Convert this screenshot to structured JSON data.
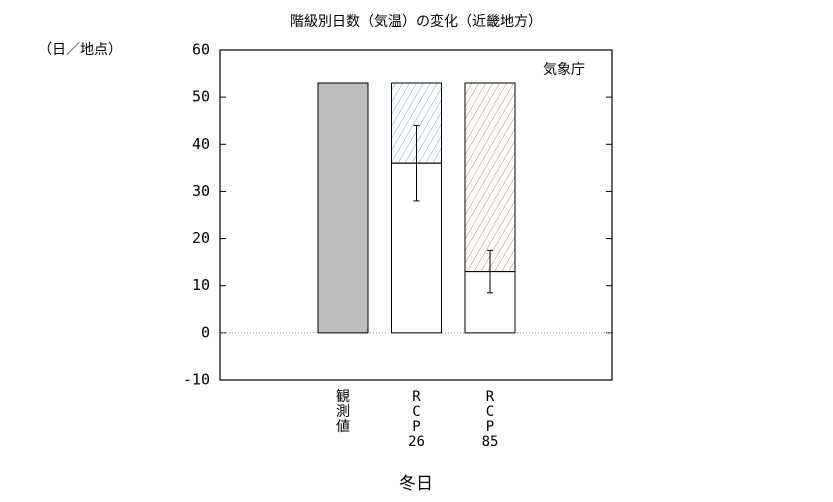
{
  "chart_data": {
    "type": "bar",
    "title": "階級別日数（気温）の変化（近畿地方）",
    "y_unit_label": "（日／地点）",
    "annotation": "気象庁",
    "x_axis_label": "冬日",
    "categories": [
      [
        "観",
        "測",
        "値"
      ],
      [
        "R",
        "C",
        "P",
        "26"
      ],
      [
        "R",
        "C",
        "P",
        "85"
      ]
    ],
    "series": [
      {
        "color": "#bebebe",
        "values": [
          53,
          null,
          null
        ]
      },
      {
        "color": "#ffffff",
        "values": [
          null,
          36,
          13
        ],
        "errors": [
          null,
          8,
          4.5
        ]
      },
      {
        "hatch": true,
        "colors": [
          null,
          "#6aaed0",
          "#d9786a"
        ],
        "values": [
          null,
          17,
          40
        ]
      }
    ],
    "ylim": [
      -10,
      60
    ],
    "yticks": [
      -10,
      0,
      10,
      20,
      30,
      40,
      50,
      60
    ],
    "zero_line": true
  }
}
